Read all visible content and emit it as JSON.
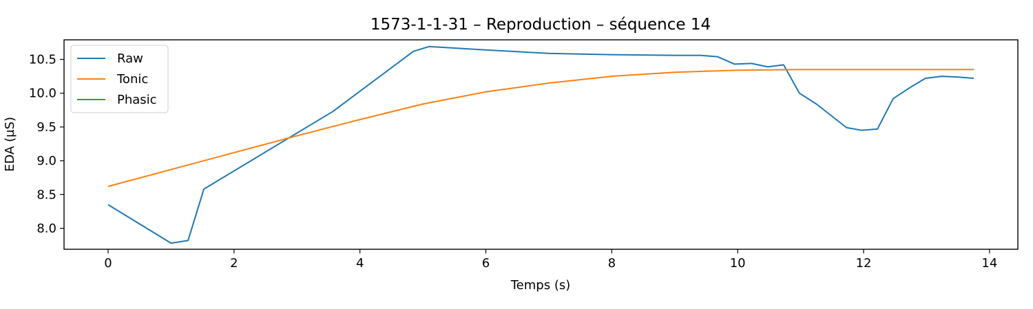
{
  "chart_data": {
    "type": "line",
    "title": "1573-1-1-31 – Reproduction – séquence 14",
    "xlabel": "Temps (s)",
    "ylabel": "EDA (µS)",
    "xlim": [
      -0.7,
      14.45
    ],
    "ylim": [
      7.69,
      10.79
    ],
    "xticks": [
      0,
      2,
      4,
      6,
      8,
      10,
      12,
      14
    ],
    "yticks": [
      8.0,
      8.5,
      9.0,
      9.5,
      10.0,
      10.5
    ],
    "ytick_labels": [
      "8.0",
      "8.5",
      "9.0",
      "9.5",
      "10.0",
      "10.5"
    ],
    "grid": false,
    "legend_position": "top-left",
    "series": [
      {
        "name": "Raw",
        "color": "#1f77b4",
        "points": [
          [
            0.0,
            8.35
          ],
          [
            1.0,
            7.78
          ],
          [
            1.27,
            7.82
          ],
          [
            1.52,
            8.58
          ],
          [
            3.57,
            9.73
          ],
          [
            4.85,
            10.62
          ],
          [
            5.1,
            10.69
          ],
          [
            6.0,
            10.64
          ],
          [
            7.0,
            10.59
          ],
          [
            8.0,
            10.57
          ],
          [
            9.0,
            10.56
          ],
          [
            9.41,
            10.56
          ],
          [
            9.68,
            10.54
          ],
          [
            9.95,
            10.43
          ],
          [
            10.22,
            10.44
          ],
          [
            10.48,
            10.39
          ],
          [
            10.73,
            10.42
          ],
          [
            10.98,
            10.0
          ],
          [
            11.25,
            9.84
          ],
          [
            11.73,
            9.49
          ],
          [
            11.97,
            9.45
          ],
          [
            12.22,
            9.47
          ],
          [
            12.47,
            9.92
          ],
          [
            12.73,
            10.08
          ],
          [
            12.98,
            10.22
          ],
          [
            13.24,
            10.25
          ],
          [
            13.49,
            10.24
          ],
          [
            13.75,
            10.22
          ]
        ]
      },
      {
        "name": "Tonic",
        "color": "#ff7f0e",
        "points": [
          [
            0.0,
            8.62
          ],
          [
            1.0,
            8.87
          ],
          [
            2.0,
            9.12
          ],
          [
            3.0,
            9.37
          ],
          [
            4.0,
            9.61
          ],
          [
            5.0,
            9.84
          ],
          [
            6.0,
            10.02
          ],
          [
            7.0,
            10.15
          ],
          [
            8.0,
            10.25
          ],
          [
            9.0,
            10.31
          ],
          [
            10.0,
            10.34
          ],
          [
            11.0,
            10.35
          ],
          [
            12.0,
            10.35
          ],
          [
            13.0,
            10.35
          ],
          [
            13.75,
            10.35
          ]
        ]
      },
      {
        "name": "Phasic",
        "color": "#2ca02c",
        "points": []
      }
    ]
  }
}
